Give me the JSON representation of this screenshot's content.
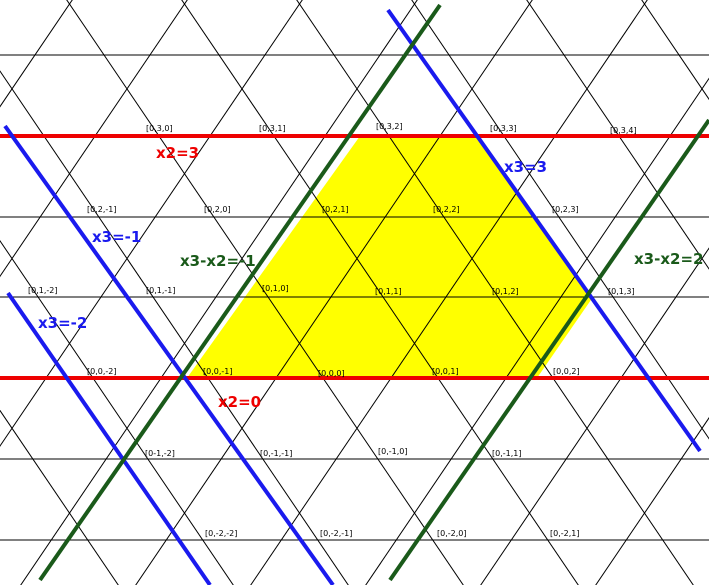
{
  "colors": {
    "background": "#ffffff",
    "grid": "#000000",
    "region": "#ffff00",
    "x2_lines": "#ee0000",
    "x3_lines": "#1a1aee",
    "x3_minus_x2_lines": "#1a5a1a"
  },
  "diagram": {
    "region_label": "",
    "line_labels": {
      "x2_top": "x2=3",
      "x2_bottom": "x2=0",
      "x3_pos": "x3=3",
      "x3_neg1": "x3=-1",
      "x3_neg2": "x3=-2",
      "diff_neg1": "x3-x2=-1",
      "diff_pos2": "x3-x2=2"
    },
    "vertex_labels": {
      "v_0_3_0": "[0,3,0]",
      "v_0_3_1": "[0,3,1]",
      "v_0_3_2": "[0,3,2]",
      "v_0_3_3": "[0,3,3]",
      "v_0_3_4": "[0,3,4]",
      "v_0_2_m1": "[0,2,-1]",
      "v_0_2_0": "[0,2,0]",
      "v_0_2_1": "[0,2,1]",
      "v_0_2_2": "[0,2,2]",
      "v_0_2_3": "[0,2,3]",
      "v_0_1_m2": "[0,1,-2]",
      "v_0_1_m1": "[0,1,-1]",
      "v_0_1_0": "[0,1,0]",
      "v_0_1_1": "[0,1,1]",
      "v_0_1_2": "[0,1,2]",
      "v_0_1_3": "[0,1,3]",
      "v_0_0_m2": "[0,0,-2]",
      "v_0_0_m1": "[0,0,-1]",
      "v_0_0_0": "[0,0,0]",
      "v_0_0_1": "[0,0,1]",
      "v_0_0_2": "[0,0,2]",
      "v_0_m1_m2": "[0-1,-2]",
      "v_0_m1_m1": "[0,-1,-1]",
      "v_0_m1_0": "[0,-1,0]",
      "v_0_m1_1": "[0,-1,1]",
      "v_0_m2_m2": "[0,-2,-2]",
      "v_0_m2_m1": "[0,-2,-1]",
      "v_0_m2_0": "[0,-2,0]",
      "v_0_m2_1": "[0,-2,1]"
    }
  }
}
